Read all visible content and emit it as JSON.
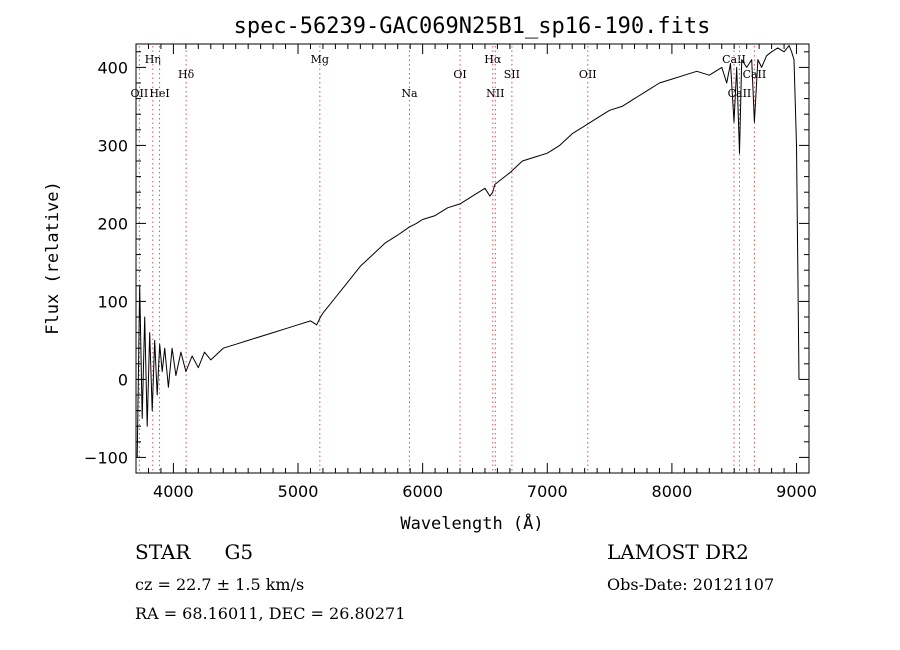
{
  "chart_data": {
    "type": "line",
    "title": "spec-56239-GAC069N25B1_sp16-190.fits",
    "xlabel": "Wavelength (Å)",
    "ylabel": "Flux (relative)",
    "xlim": [
      3700,
      9100
    ],
    "ylim": [
      -120,
      430
    ],
    "xticks": [
      4000,
      5000,
      6000,
      7000,
      8000,
      9000
    ],
    "yticks": [
      -100,
      0,
      100,
      200,
      300,
      400
    ],
    "xtick_labels": [
      "4000",
      "5000",
      "6000",
      "7000",
      "8000",
      "9000"
    ],
    "ytick_labels": [
      "−100",
      "0",
      "100",
      "200",
      "300",
      "400"
    ],
    "grid": false,
    "line_color": "#000000",
    "marker_color": "#d9534f",
    "series": [
      {
        "x": [
          3710,
          3730,
          3750,
          3770,
          3790,
          3810,
          3830,
          3850,
          3870,
          3890,
          3910,
          3930,
          3960,
          3990,
          4020,
          4060,
          4100,
          4150,
          4200,
          4250,
          4300,
          4400,
          4500,
          4600,
          4700,
          4800,
          4900,
          5000,
          5100,
          5150,
          5180,
          5200,
          5250,
          5300,
          5400,
          5500,
          5600,
          5700,
          5800,
          5890,
          5950,
          6000,
          6100,
          6200,
          6300,
          6400,
          6500,
          6540,
          6562,
          6580,
          6620,
          6700,
          6800,
          6900,
          7000,
          7100,
          7200,
          7300,
          7400,
          7500,
          7600,
          7700,
          7800,
          7900,
          8000,
          8100,
          8200,
          8300,
          8400,
          8440,
          8470,
          8498,
          8520,
          8542,
          8560,
          8600,
          8640,
          8662,
          8690,
          8720,
          8760,
          8800,
          8850,
          8900,
          8940,
          8960,
          8980,
          9000,
          9020
        ],
        "y": [
          -100,
          120,
          -50,
          80,
          -60,
          60,
          -40,
          50,
          -20,
          45,
          10,
          40,
          -10,
          40,
          5,
          35,
          10,
          30,
          15,
          35,
          25,
          40,
          45,
          50,
          55,
          60,
          65,
          70,
          75,
          70,
          80,
          85,
          95,
          105,
          125,
          145,
          160,
          175,
          185,
          195,
          200,
          205,
          210,
          220,
          225,
          235,
          245,
          235,
          240,
          250,
          255,
          265,
          280,
          285,
          290,
          300,
          315,
          325,
          335,
          345,
          350,
          360,
          370,
          380,
          385,
          390,
          395,
          390,
          400,
          380,
          405,
          330,
          400,
          290,
          410,
          400,
          410,
          330,
          410,
          400,
          415,
          420,
          425,
          420,
          428,
          420,
          410,
          300,
          0
        ]
      }
    ],
    "line_markers": [
      {
        "label": "OII",
        "x": 3727,
        "row": 2
      },
      {
        "label": "Hη",
        "x": 3835,
        "row": 0
      },
      {
        "label": "HeI",
        "x": 3889,
        "row": 2
      },
      {
        "label": "Hδ",
        "x": 4102,
        "row": 1
      },
      {
        "label": "Mg",
        "x": 5175,
        "row": 0
      },
      {
        "label": "Na",
        "x": 5894,
        "row": 2
      },
      {
        "label": "OI",
        "x": 6300,
        "row": 1
      },
      {
        "label": "Hα",
        "x": 6563,
        "row": 0
      },
      {
        "label": "NII",
        "x": 6583,
        "row": 2
      },
      {
        "label": "SII",
        "x": 6716,
        "row": 1
      },
      {
        "label": "OII",
        "x": 7325,
        "row": 1
      },
      {
        "label": "CaII",
        "x": 8498,
        "row": 0
      },
      {
        "label": "CaII",
        "x": 8542,
        "row": 2
      },
      {
        "label": "CaII",
        "x": 8662,
        "row": 1
      }
    ]
  },
  "info": {
    "class": "STAR",
    "subclass": "G5",
    "cz": "cz = 22.7 ± 1.5 km/s",
    "radec": "RA =  68.16011, DEC =  26.80271",
    "release": "LAMOST DR2",
    "obs_date": "Obs-Date: 20121107"
  }
}
